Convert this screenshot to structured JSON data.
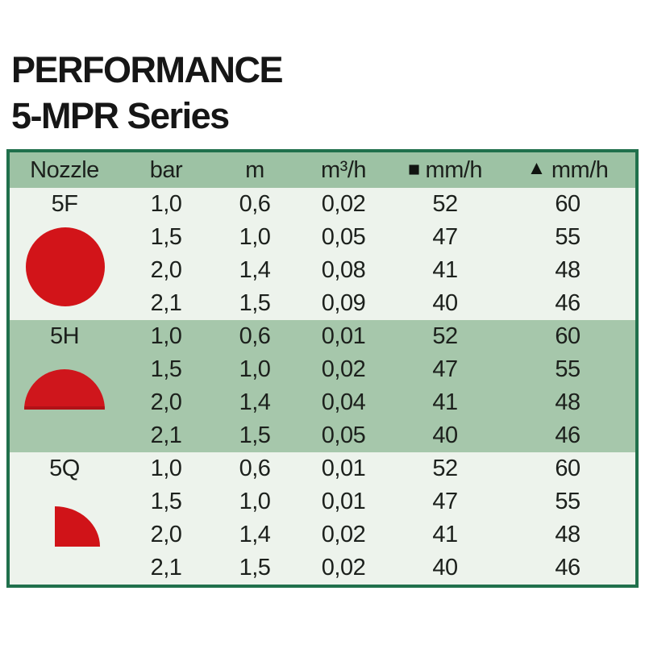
{
  "title": {
    "line1": "PERFORMANCE",
    "line2": "5-MPR Series"
  },
  "table": {
    "header": {
      "nozzle": "Nozzle",
      "bar": "bar",
      "m": "m",
      "m3h": "m³/h",
      "square_glyph": "■",
      "square_unit": "mm/h",
      "triangle_glyph": "▲",
      "triangle_unit": "mm/h"
    },
    "sections": [
      {
        "label": "5F",
        "icon": "full-circle-nozzle",
        "rows": [
          [
            "1,0",
            "0,6",
            "0,02",
            "52",
            "60"
          ],
          [
            "1,5",
            "1,0",
            "0,05",
            "47",
            "55"
          ],
          [
            "2,0",
            "1,4",
            "0,08",
            "41",
            "48"
          ],
          [
            "2,1",
            "1,5",
            "0,09",
            "40",
            "46"
          ]
        ]
      },
      {
        "label": "5H",
        "icon": "half-circle-nozzle",
        "rows": [
          [
            "1,0",
            "0,6",
            "0,01",
            "52",
            "60"
          ],
          [
            "1,5",
            "1,0",
            "0,02",
            "47",
            "55"
          ],
          [
            "2,0",
            "1,4",
            "0,04",
            "41",
            "48"
          ],
          [
            "2,1",
            "1,5",
            "0,05",
            "40",
            "46"
          ]
        ]
      },
      {
        "label": "5Q",
        "icon": "quarter-circle-nozzle",
        "rows": [
          [
            "1,0",
            "0,6",
            "0,01",
            "52",
            "60"
          ],
          [
            "1,5",
            "1,0",
            "0,01",
            "47",
            "55"
          ],
          [
            "2,0",
            "1,4",
            "0,02",
            "41",
            "48"
          ],
          [
            "2,1",
            "1,5",
            "0,02",
            "40",
            "46"
          ]
        ]
      }
    ]
  },
  "colors": {
    "table_border_green": "#20704c",
    "header_bg": "#9dc2a4",
    "band_green": "#a6c7ab",
    "band_light": "#edf3ec",
    "nozzle_red": "#d21419",
    "text": "#1c201c"
  }
}
